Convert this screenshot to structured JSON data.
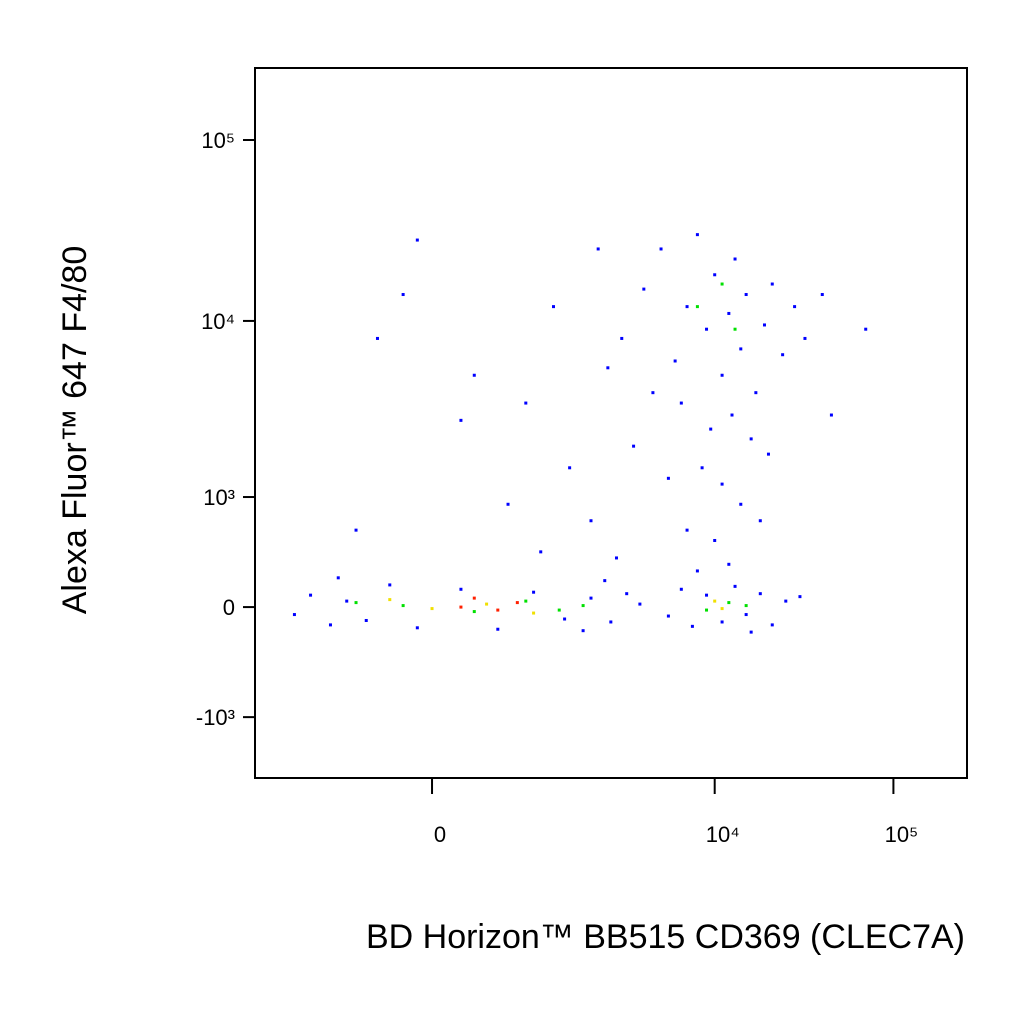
{
  "chart_data": {
    "type": "scatter",
    "x_label": "BD Horizon™ BB515 CD369 (CLEC7A)",
    "y_label": "Alexa Fluor™ 647 F4/80",
    "xscale": "asinh",
    "yscale": "asinh",
    "xlim": [
      -2540,
      258000
    ],
    "ylim": [
      -2280,
      250000
    ],
    "xticks": [
      0,
      {
        "value": 10000,
        "label": "10⁴"
      },
      {
        "value": 100000,
        "label": "10⁵"
      }
    ],
    "yticks": [
      {
        "value": -1000,
        "label": "-10³"
      },
      0,
      {
        "value": 1000,
        "label": "10³"
      },
      {
        "value": 10000,
        "label": "10⁴"
      },
      {
        "value": 100000,
        "label": "10⁵"
      }
    ],
    "series": [
      {
        "color": "#0000ff",
        "x": [
          -1500,
          -1200,
          -900,
          -700,
          -500,
          -300,
          -100,
          200,
          500,
          900,
          1400,
          2000,
          2600,
          3200,
          -800,
          1800,
          3800,
          2400,
          5500,
          6500,
          7500,
          9000,
          11000,
          13000,
          15000,
          18000,
          21000,
          25000,
          30000,
          8000,
          12000,
          16000,
          3000,
          4000,
          5000,
          6000,
          7000,
          8000,
          9000,
          10000,
          11000,
          12000,
          13000,
          14000,
          15000,
          17000,
          19000,
          21000,
          24000,
          28000,
          6500,
          9500,
          12500,
          16000,
          20000,
          8500,
          11000,
          14000,
          18000,
          7000,
          10000,
          4500,
          3500,
          5500,
          32000,
          40000,
          45000,
          70000,
          2200,
          2500,
          -100,
          -200,
          -400,
          300,
          800,
          1200,
          1500,
          600,
          -600,
          2000,
          1000,
          2800,
          200
        ],
        "y": [
          -50,
          80,
          -120,
          40,
          -90,
          150,
          -140,
          120,
          -150,
          100,
          -80,
          60,
          -100,
          90,
          200,
          -160,
          20,
          180,
          -60,
          120,
          -130,
          80,
          -100,
          140,
          -50,
          90,
          -120,
          40,
          70,
          250,
          300,
          -170,
          8000,
          15000,
          25000,
          6000,
          12000,
          30000,
          9000,
          18000,
          5000,
          11000,
          22000,
          7000,
          14000,
          4000,
          9500,
          16000,
          6500,
          12000,
          3500,
          2500,
          3000,
          2200,
          1800,
          1500,
          1200,
          900,
          700,
          600,
          500,
          4000,
          2000,
          1300,
          8000,
          14000,
          3000,
          9000,
          25000,
          5500,
          28000,
          14000,
          8000,
          5000,
          3500,
          12000,
          1500,
          900,
          600,
          700,
          400,
          350,
          2800
        ]
      },
      {
        "color": "#00e000",
        "x": [
          -200,
          300,
          800,
          1300,
          -600,
          1800,
          9000,
          12000,
          15000,
          8000,
          11000,
          13000
        ],
        "y": [
          10,
          -30,
          40,
          -20,
          30,
          10,
          -20,
          30,
          10,
          12000,
          16000,
          9000
        ]
      },
      {
        "color": "#f0e000",
        "x": [
          0,
          400,
          900,
          -300,
          11000,
          10000
        ],
        "y": [
          -10,
          20,
          -40,
          50,
          -10,
          40
        ]
      },
      {
        "color": "#ff2000",
        "x": [
          200,
          500,
          700,
          300
        ],
        "y": [
          0,
          -20,
          30,
          60
        ]
      }
    ]
  }
}
